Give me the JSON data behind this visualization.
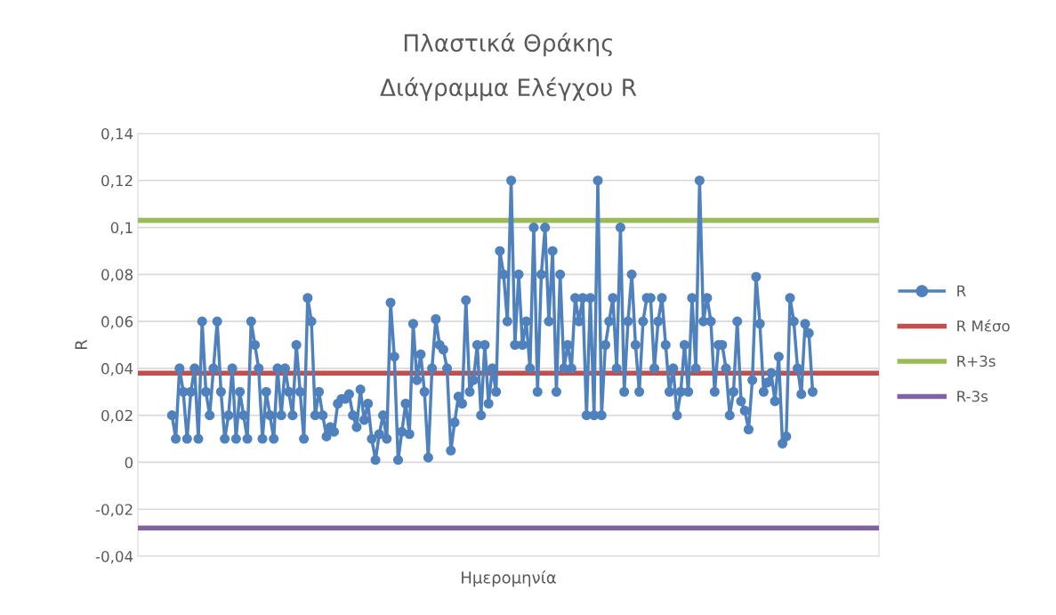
{
  "chart_data": {
    "type": "line",
    "title": "Πλαστικά Θράκης",
    "subtitle": "Διάγραμμα Ελέγχου R",
    "xlabel": "Ημερομηνία",
    "ylabel": "R",
    "categories": [
      null,
      null,
      null,
      null,
      null,
      null,
      null,
      null,
      null,
      null,
      null,
      null,
      null,
      null,
      null,
      null,
      null,
      null,
      null,
      null,
      null,
      null,
      null,
      null,
      null,
      null,
      null,
      null,
      null,
      null,
      null,
      null,
      null,
      null,
      null,
      null,
      null,
      null,
      null,
      null,
      null,
      null,
      null,
      null,
      null,
      null,
      null,
      null,
      null,
      null,
      null,
      null,
      null,
      null,
      null,
      null,
      null,
      null,
      null,
      null,
      null,
      null,
      null,
      null,
      null,
      null,
      null,
      null,
      null,
      null,
      null,
      null,
      null,
      null,
      null,
      null,
      null,
      null,
      null,
      null,
      null,
      null,
      null,
      null,
      null,
      null,
      null,
      null,
      null,
      null,
      null,
      null,
      null,
      null,
      null,
      null,
      null,
      null,
      null,
      null,
      null,
      null,
      null,
      null,
      null,
      null,
      null,
      null,
      null,
      null,
      null,
      null,
      null,
      null,
      null,
      null,
      null,
      null,
      null,
      null,
      null,
      null,
      null,
      null,
      null,
      null,
      null,
      null,
      null,
      null,
      null,
      null,
      null,
      null,
      null,
      null,
      null,
      null,
      null,
      null,
      null,
      null,
      null,
      null,
      null,
      null,
      null,
      null,
      null,
      null,
      null,
      null,
      null,
      null,
      null,
      null,
      null,
      null,
      null,
      null,
      null,
      null,
      null,
      null,
      null,
      null,
      null,
      null,
      null,
      null,
      null
    ],
    "ylim": [
      -0.04,
      0.14
    ],
    "yticks": [
      {
        "value": -0.04,
        "label": "-0,04"
      },
      {
        "value": -0.02,
        "label": "-0,02"
      },
      {
        "value": 0,
        "label": "0"
      },
      {
        "value": 0.02,
        "label": "0,02"
      },
      {
        "value": 0.04,
        "label": "0,04"
      },
      {
        "value": 0.06,
        "label": "0,06"
      },
      {
        "value": 0.08,
        "label": "0,08"
      },
      {
        "value": 0.1,
        "label": "0,1"
      },
      {
        "value": 0.12,
        "label": "0,12"
      },
      {
        "value": 0.14,
        "label": "0,14"
      }
    ],
    "grid": "y",
    "legend": "right",
    "marker": "circle",
    "line_style": "solid",
    "series": [
      {
        "name": "R",
        "color": "#4f81bd",
        "values": [
          0.02,
          0.01,
          0.04,
          0.03,
          0.01,
          0.03,
          0.04,
          0.01,
          0.06,
          0.03,
          0.02,
          0.04,
          0.06,
          0.03,
          0.01,
          0.02,
          0.04,
          0.01,
          0.03,
          0.02,
          0.01,
          0.06,
          0.05,
          0.04,
          0.01,
          0.03,
          0.02,
          0.01,
          0.04,
          0.02,
          0.04,
          0.03,
          0.02,
          0.05,
          0.03,
          0.01,
          0.07,
          0.06,
          0.02,
          0.03,
          0.02,
          0.011,
          0.015,
          0.013,
          0.025,
          0.027,
          0.027,
          0.029,
          0.02,
          0.015,
          0.031,
          0.018,
          0.025,
          0.01,
          0.001,
          0.012,
          0.02,
          0.01,
          0.068,
          0.045,
          0.001,
          0.013,
          0.025,
          0.012,
          0.059,
          0.035,
          0.046,
          0.03,
          0.002,
          0.04,
          0.061,
          0.05,
          0.048,
          0.04,
          0.005,
          0.017,
          0.028,
          0.025,
          0.069,
          0.03,
          0.035,
          0.05,
          0.02,
          0.05,
          0.025,
          0.04,
          0.03,
          0.09,
          0.08,
          0.06,
          0.12,
          0.05,
          0.08,
          0.05,
          0.06,
          0.04,
          0.1,
          0.03,
          0.08,
          0.1,
          0.06,
          0.09,
          0.03,
          0.08,
          0.04,
          0.05,
          0.04,
          0.07,
          0.06,
          0.07,
          0.02,
          0.07,
          0.02,
          0.12,
          0.02,
          0.05,
          0.06,
          0.07,
          0.04,
          0.1,
          0.03,
          0.06,
          0.08,
          0.05,
          0.03,
          0.06,
          0.07,
          0.07,
          0.04,
          0.06,
          0.07,
          0.05,
          0.03,
          0.04,
          0.02,
          0.03,
          0.05,
          0.03,
          0.07,
          0.04,
          0.12,
          0.06,
          0.07,
          0.06,
          0.03,
          0.05,
          0.05,
          0.04,
          0.02,
          0.03,
          0.06,
          0.026,
          0.022,
          0.014,
          0.035,
          0.079,
          0.059,
          0.03,
          0.034,
          0.038,
          0.026,
          0.045,
          0.008,
          0.011,
          0.07,
          0.06,
          0.04,
          0.029,
          0.059,
          0.055,
          0.03
        ]
      }
    ],
    "ref_lines": [
      {
        "axis": "y",
        "value": 0.038,
        "label": "R Μέσο",
        "color": "#c0504d",
        "line_style": "solid"
      },
      {
        "axis": "y",
        "value": 0.103,
        "label": "R+3s",
        "color": "#9bbb59",
        "line_style": "solid"
      },
      {
        "axis": "y",
        "value": -0.028,
        "label": "R-3s",
        "color": "#8064a2",
        "line_style": "solid"
      }
    ]
  }
}
